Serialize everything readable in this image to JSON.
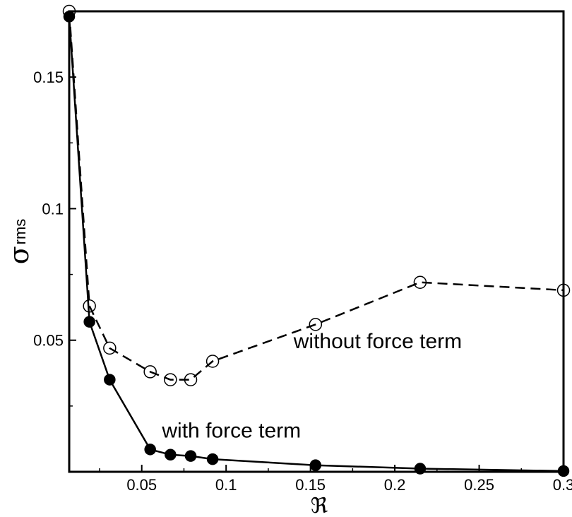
{
  "chart_data": {
    "type": "line",
    "title": "",
    "xlabel": "ℜ",
    "ylabel": "σ",
    "ylabel_subscript": "rms",
    "xlim": [
      0.007,
      0.3
    ],
    "ylim": [
      0,
      0.175
    ],
    "grid": false,
    "x_ticks": [
      {
        "value": 0.05,
        "label": "0.05"
      },
      {
        "value": 0.1,
        "label": "0.1"
      },
      {
        "value": 0.15,
        "label": "0.15"
      },
      {
        "value": 0.2,
        "label": "0.2"
      },
      {
        "value": 0.25,
        "label": "0.25"
      },
      {
        "value": 0.3,
        "label": "0.3"
      }
    ],
    "y_ticks": [
      {
        "value": 0.05,
        "label": "0.05"
      },
      {
        "value": 0.1,
        "label": "0.1"
      },
      {
        "value": 0.15,
        "label": "0.15"
      }
    ],
    "series": [
      {
        "name": "without force term",
        "line_style": "dashed",
        "marker": "open-circle",
        "color": "#000000",
        "points": [
          {
            "x": 0.007,
            "y": 0.175
          },
          {
            "x": 0.019,
            "y": 0.063
          },
          {
            "x": 0.031,
            "y": 0.047
          },
          {
            "x": 0.055,
            "y": 0.038
          },
          {
            "x": 0.067,
            "y": 0.035
          },
          {
            "x": 0.079,
            "y": 0.035
          },
          {
            "x": 0.092,
            "y": 0.042
          },
          {
            "x": 0.153,
            "y": 0.056
          },
          {
            "x": 0.215,
            "y": 0.072
          },
          {
            "x": 0.3,
            "y": 0.069
          }
        ]
      },
      {
        "name": "with force term",
        "line_style": "solid",
        "marker": "filled-circle",
        "color": "#000000",
        "points": [
          {
            "x": 0.007,
            "y": 0.173
          },
          {
            "x": 0.019,
            "y": 0.057
          },
          {
            "x": 0.031,
            "y": 0.035
          },
          {
            "x": 0.055,
            "y": 0.0085
          },
          {
            "x": 0.067,
            "y": 0.0065
          },
          {
            "x": 0.079,
            "y": 0.006
          },
          {
            "x": 0.092,
            "y": 0.0048
          },
          {
            "x": 0.153,
            "y": 0.0025
          },
          {
            "x": 0.215,
            "y": 0.0012
          },
          {
            "x": 0.3,
            "y": 0.0003
          }
        ]
      }
    ],
    "annotations": [
      {
        "text": "without force term",
        "series": "without force term"
      },
      {
        "text": "with force term",
        "series": "with force term"
      }
    ]
  }
}
